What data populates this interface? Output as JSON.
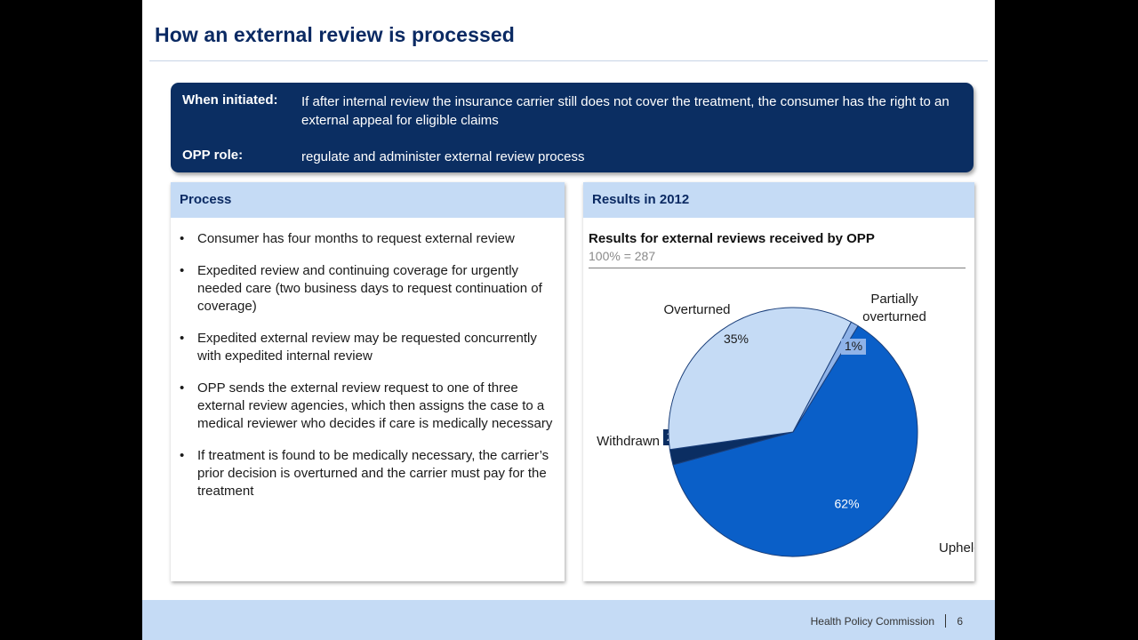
{
  "slide": {
    "title": "How an external review is processed"
  },
  "summary": {
    "initiated_label": "When initiated:",
    "initiated_text": "If after internal review the insurance carrier still does not cover the treatment, the consumer has the right to an external appeal for eligible claims",
    "role_label": "OPP role:",
    "role_text": "regulate and administer external review process"
  },
  "process": {
    "header": "Process",
    "bullets": [
      "Consumer has four months to request external review",
      "Expedited review and continuing coverage for urgently needed care (two business days to request continuation of coverage)",
      "Expedited external review may be requested concurrently with expedited internal review",
      "OPP sends the external review request to one of three external review agencies, which then assigns the case to a medical reviewer who decides if care is medically necessary",
      "If treatment is found to be medically necessary, the carrier’s prior decision is overturned and the carrier must pay for the treatment"
    ]
  },
  "results": {
    "header": "Results in 2012"
  },
  "chart_data": {
    "type": "pie",
    "title": "Results for external reviews received by OPP",
    "subtitle": "100% = 287",
    "slices": [
      {
        "label": "Upheld",
        "value": 62,
        "value_label": "62%",
        "color": "#0a5fc8"
      },
      {
        "label": "Withdrawn",
        "value": 2,
        "value_label": "2%",
        "color": "#0b2e62"
      },
      {
        "label": "Overturned",
        "value": 35,
        "value_label": "35%",
        "color": "#c5dbf5"
      },
      {
        "label": "Partially overturned",
        "value": 1,
        "value_label": "1%",
        "color": "#8fb3e8"
      }
    ]
  },
  "footer": {
    "org": "Health Policy Commission",
    "page": "6"
  }
}
